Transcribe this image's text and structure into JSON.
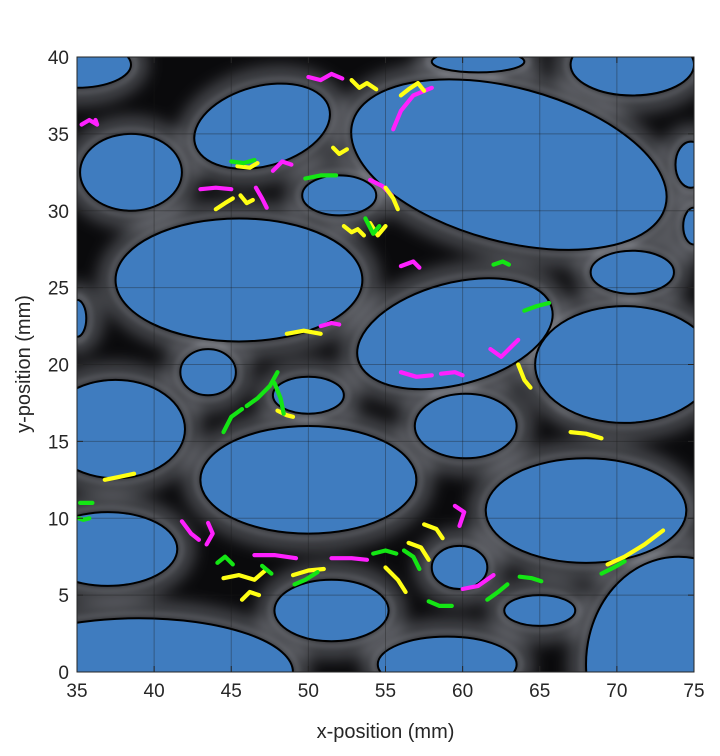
{
  "chart_data": {
    "type": "scatter",
    "title": "",
    "xlabel": "x-position (mm)",
    "ylabel": "y-position (mm)",
    "xlim": [
      35,
      75
    ],
    "ylim": [
      0,
      40
    ],
    "x_ticks": [
      35,
      40,
      45,
      50,
      55,
      60,
      65,
      70,
      75
    ],
    "y_ticks": [
      0,
      5,
      10,
      15,
      20,
      25,
      30,
      35,
      40
    ],
    "grid": true,
    "legend": "none",
    "colors": {
      "background": "#0a0a0c",
      "obstacle_fill": "#3f7cbf",
      "obstacle_edge": "#000000",
      "channel_glow": "#d8dde8",
      "magenta": "#ff20ff",
      "yellow": "#ffff14",
      "green": "#14e614"
    },
    "obstacles": [
      {
        "cx": 47.0,
        "cy": 35.5,
        "rx": 4.5,
        "ry": 2.6,
        "angle": 15
      },
      {
        "cx": 63.0,
        "cy": 33.0,
        "rx": 10.5,
        "ry": 5.0,
        "angle": -15
      },
      {
        "cx": 38.5,
        "cy": 32.5,
        "rx": 3.3,
        "ry": 2.5,
        "angle": 0
      },
      {
        "cx": 52.0,
        "cy": 31.0,
        "rx": 2.4,
        "ry": 1.3,
        "angle": 0
      },
      {
        "cx": 45.5,
        "cy": 25.5,
        "rx": 8.0,
        "ry": 4.0,
        "angle": 0
      },
      {
        "cx": 59.5,
        "cy": 22.0,
        "rx": 6.5,
        "ry": 3.3,
        "angle": 15
      },
      {
        "cx": 70.5,
        "cy": 20.0,
        "rx": 5.8,
        "ry": 3.8,
        "angle": 0
      },
      {
        "cx": 71.0,
        "cy": 26.0,
        "rx": 2.7,
        "ry": 1.4,
        "angle": 0
      },
      {
        "cx": 71.0,
        "cy": 39.5,
        "rx": 4.0,
        "ry": 2.0,
        "angle": 0
      },
      {
        "cx": 43.5,
        "cy": 19.5,
        "rx": 1.8,
        "ry": 1.5,
        "angle": 0
      },
      {
        "cx": 50.0,
        "cy": 18.0,
        "rx": 2.3,
        "ry": 1.2,
        "angle": 0
      },
      {
        "cx": 37.5,
        "cy": 15.8,
        "rx": 4.5,
        "ry": 3.2,
        "angle": 0
      },
      {
        "cx": 50.0,
        "cy": 12.5,
        "rx": 7.0,
        "ry": 3.5,
        "angle": 0
      },
      {
        "cx": 60.2,
        "cy": 16.0,
        "rx": 3.3,
        "ry": 2.1,
        "angle": 0
      },
      {
        "cx": 68.0,
        "cy": 10.5,
        "rx": 6.5,
        "ry": 3.4,
        "angle": 0
      },
      {
        "cx": 37.0,
        "cy": 8.0,
        "rx": 4.5,
        "ry": 2.4,
        "angle": 0
      },
      {
        "cx": 59.8,
        "cy": 6.8,
        "rx": 1.8,
        "ry": 1.4,
        "angle": 0
      },
      {
        "cx": 67.2,
        "cy": 18.2,
        "rx": 0.1,
        "ry": 0.1,
        "angle": 0
      },
      {
        "cx": 74.0,
        "cy": 0.5,
        "rx": 6.0,
        "ry": 7.0,
        "angle": 0
      },
      {
        "cx": 39.0,
        "cy": 0.0,
        "rx": 10.0,
        "ry": 3.5,
        "angle": 0
      },
      {
        "cx": 51.5,
        "cy": 4.0,
        "rx": 3.7,
        "ry": 2.0,
        "angle": 0
      },
      {
        "cx": 59.0,
        "cy": 0.5,
        "rx": 4.5,
        "ry": 1.8,
        "angle": 0
      },
      {
        "cx": 65.0,
        "cy": 4.0,
        "rx": 2.3,
        "ry": 1.0,
        "angle": 0
      },
      {
        "cx": 61.0,
        "cy": 39.7,
        "rx": 3.0,
        "ry": 0.7,
        "angle": 0
      },
      {
        "cx": 74.8,
        "cy": 33.0,
        "rx": 1.0,
        "ry": 1.5,
        "angle": 0
      },
      {
        "cx": 75.0,
        "cy": 29.0,
        "rx": 0.7,
        "ry": 1.2,
        "angle": 0
      },
      {
        "cx": 35.0,
        "cy": 23.0,
        "rx": 0.6,
        "ry": 1.2,
        "angle": 0
      },
      {
        "cx": 35.0,
        "cy": 39.5,
        "rx": 3.5,
        "ry": 1.5,
        "angle": 0
      }
    ],
    "series": [
      {
        "color": "magenta",
        "tracks": [
          [
            [
              35.3,
              35.6
            ],
            [
              35.8,
              35.9
            ],
            [
              36.3,
              35.6
            ],
            [
              36.2,
              35.9
            ]
          ],
          [
            [
              50.0,
              38.7
            ],
            [
              50.8,
              38.5
            ],
            [
              51.5,
              38.9
            ],
            [
              52.2,
              38.6
            ]
          ],
          [
            [
              55.5,
              35.3
            ],
            [
              56.0,
              36.5
            ],
            [
              56.8,
              37.5
            ],
            [
              58.0,
              38.0
            ]
          ],
          [
            [
              46.6,
              31.5
            ],
            [
              47.0,
              30.8
            ],
            [
              47.3,
              30.2
            ]
          ],
          [
            [
              43.0,
              31.4
            ],
            [
              44.0,
              31.5
            ],
            [
              45.0,
              31.4
            ]
          ],
          [
            [
              47.7,
              32.6
            ],
            [
              48.3,
              33.2
            ],
            [
              48.9,
              33.0
            ]
          ],
          [
            [
              54.0,
              32.0
            ],
            [
              54.8,
              31.6
            ],
            [
              55.4,
              31.0
            ]
          ],
          [
            [
              56.0,
              26.4
            ],
            [
              56.8,
              26.7
            ],
            [
              57.2,
              26.3
            ]
          ],
          [
            [
              50.8,
              22.5
            ],
            [
              51.5,
              22.7
            ],
            [
              52.0,
              22.6
            ]
          ],
          [
            [
              61.8,
              21.0
            ],
            [
              62.5,
              20.5
            ],
            [
              63.0,
              21.0
            ],
            [
              63.6,
              21.6
            ]
          ],
          [
            [
              58.6,
              19.4
            ],
            [
              59.5,
              19.5
            ],
            [
              60.0,
              19.3
            ]
          ],
          [
            [
              56.0,
              19.5
            ],
            [
              57.0,
              19.2
            ],
            [
              58.0,
              19.3
            ]
          ],
          [
            [
              41.8,
              9.8
            ],
            [
              42.4,
              9.0
            ],
            [
              42.9,
              8.6
            ]
          ],
          [
            [
              43.5,
              9.7
            ],
            [
              43.8,
              9.0
            ],
            [
              43.4,
              8.3
            ]
          ],
          [
            [
              46.5,
              7.6
            ],
            [
              47.8,
              7.6
            ],
            [
              49.2,
              7.4
            ]
          ],
          [
            [
              51.5,
              7.4
            ],
            [
              52.8,
              7.4
            ],
            [
              53.8,
              7.3
            ]
          ],
          [
            [
              59.5,
              10.8
            ],
            [
              60.1,
              10.4
            ],
            [
              59.8,
              9.5
            ]
          ],
          [
            [
              60.0,
              5.4
            ],
            [
              61.0,
              5.6
            ],
            [
              62.0,
              6.3
            ]
          ]
        ]
      },
      {
        "color": "yellow",
        "tracks": [
          [
            [
              52.8,
              38.5
            ],
            [
              53.3,
              38.0
            ],
            [
              53.8,
              38.3
            ],
            [
              54.4,
              37.9
            ]
          ],
          [
            [
              56.0,
              37.5
            ],
            [
              56.5,
              37.9
            ],
            [
              57.1,
              38.3
            ],
            [
              57.5,
              37.8
            ]
          ],
          [
            [
              51.6,
              34.1
            ],
            [
              52.0,
              33.7
            ],
            [
              52.5,
              34.0
            ]
          ],
          [
            [
              45.4,
              32.9
            ],
            [
              46.2,
              32.8
            ],
            [
              46.7,
              33.1
            ]
          ],
          [
            [
              44.0,
              30.1
            ],
            [
              44.6,
              30.5
            ],
            [
              45.1,
              30.8
            ]
          ],
          [
            [
              45.6,
              31.0
            ],
            [
              46.0,
              30.5
            ],
            [
              46.4,
              30.7
            ]
          ],
          [
            [
              55.0,
              31.5
            ],
            [
              55.5,
              30.8
            ],
            [
              55.8,
              30.1
            ]
          ],
          [
            [
              52.3,
              29.0
            ],
            [
              52.8,
              28.6
            ],
            [
              53.2,
              28.8
            ],
            [
              53.6,
              28.4
            ]
          ],
          [
            [
              54.0,
              29.2
            ],
            [
              54.5,
              28.4
            ],
            [
              55.0,
              29.0
            ]
          ],
          [
            [
              48.6,
              22.0
            ],
            [
              49.7,
              22.2
            ],
            [
              50.8,
              22.0
            ]
          ],
          [
            [
              63.6,
              20.0
            ],
            [
              64.0,
              19.0
            ],
            [
              64.4,
              18.5
            ]
          ],
          [
            [
              48.0,
              17.0
            ],
            [
              48.6,
              16.7
            ],
            [
              49.0,
              16.6
            ]
          ],
          [
            [
              67.0,
              15.6
            ],
            [
              68.0,
              15.5
            ],
            [
              69.0,
              15.2
            ]
          ],
          [
            [
              36.8,
              12.5
            ],
            [
              37.8,
              12.7
            ],
            [
              38.7,
              12.9
            ]
          ],
          [
            [
              44.5,
              6.1
            ],
            [
              45.5,
              6.3
            ],
            [
              46.5,
              6.0
            ],
            [
              47.2,
              6.6
            ]
          ],
          [
            [
              45.7,
              4.7
            ],
            [
              46.2,
              5.2
            ],
            [
              46.8,
              5.0
            ]
          ],
          [
            [
              49.0,
              6.3
            ],
            [
              50.0,
              6.6
            ],
            [
              51.0,
              6.7
            ]
          ],
          [
            [
              55.0,
              6.8
            ],
            [
              55.8,
              6.0
            ],
            [
              56.3,
              5.2
            ]
          ],
          [
            [
              56.5,
              8.4
            ],
            [
              57.3,
              8.1
            ],
            [
              57.8,
              7.3
            ]
          ],
          [
            [
              57.5,
              9.6
            ],
            [
              58.3,
              9.3
            ],
            [
              58.7,
              8.7
            ]
          ],
          [
            [
              69.4,
              7.0
            ],
            [
              70.5,
              7.5
            ],
            [
              71.8,
              8.3
            ],
            [
              73.0,
              9.2
            ]
          ]
        ]
      },
      {
        "color": "green",
        "tracks": [
          [
            [
              45.0,
              33.2
            ],
            [
              45.8,
              33.1
            ],
            [
              46.5,
              33.3
            ]
          ],
          [
            [
              49.8,
              32.1
            ],
            [
              50.8,
              32.3
            ],
            [
              51.8,
              32.3
            ]
          ],
          [
            [
              53.7,
              29.5
            ],
            [
              54.2,
              28.5
            ],
            [
              54.6,
              29.0
            ]
          ],
          [
            [
              62.0,
              26.5
            ],
            [
              62.6,
              26.7
            ],
            [
              63.0,
              26.5
            ]
          ],
          [
            [
              64.0,
              23.5
            ],
            [
              64.8,
              23.8
            ],
            [
              65.6,
              24.0
            ]
          ],
          [
            [
              44.5,
              15.6
            ],
            [
              45.0,
              16.6
            ],
            [
              45.7,
              17.1
            ]
          ],
          [
            [
              46.0,
              17.3
            ],
            [
              46.7,
              17.8
            ],
            [
              47.5,
              18.6
            ],
            [
              48.0,
              19.5
            ]
          ],
          [
            [
              47.8,
              18.8
            ],
            [
              48.2,
              17.8
            ],
            [
              48.4,
              16.8
            ]
          ],
          [
            [
              35.2,
              11.0
            ],
            [
              35.6,
              11.0
            ],
            [
              36.0,
              11.0
            ]
          ],
          [
            [
              35.1,
              10.0
            ],
            [
              35.4,
              9.9
            ],
            [
              35.8,
              10.0
            ]
          ],
          [
            [
              44.1,
              7.1
            ],
            [
              44.6,
              7.5
            ],
            [
              45.1,
              7.0
            ]
          ],
          [
            [
              47.0,
              6.9
            ],
            [
              47.6,
              6.4
            ]
          ],
          [
            [
              54.2,
              7.7
            ],
            [
              55.0,
              7.9
            ],
            [
              55.7,
              7.7
            ]
          ],
          [
            [
              56.2,
              7.9
            ],
            [
              56.8,
              7.5
            ],
            [
              57.2,
              6.7
            ]
          ],
          [
            [
              49.1,
              5.7
            ],
            [
              49.8,
              6.0
            ],
            [
              50.6,
              6.5
            ]
          ],
          [
            [
              57.8,
              4.6
            ],
            [
              58.5,
              4.3
            ],
            [
              59.3,
              4.3
            ]
          ],
          [
            [
              61.6,
              4.7
            ],
            [
              62.3,
              5.2
            ],
            [
              62.9,
              5.7
            ]
          ],
          [
            [
              63.7,
              6.2
            ],
            [
              64.5,
              6.1
            ],
            [
              65.1,
              5.9
            ]
          ],
          [
            [
              69.0,
              6.4
            ],
            [
              69.8,
              6.8
            ],
            [
              70.5,
              7.2
            ]
          ]
        ]
      }
    ]
  }
}
